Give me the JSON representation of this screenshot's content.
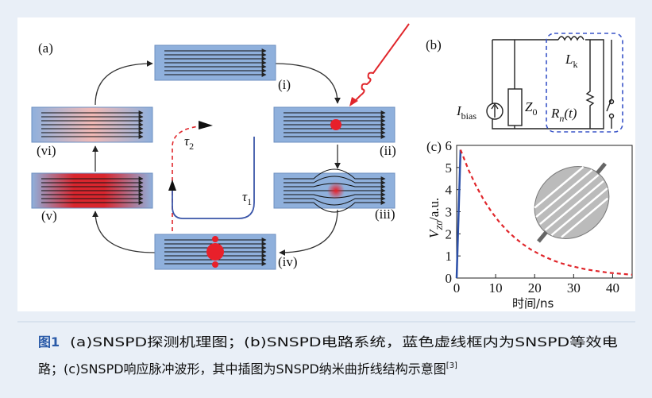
{
  "panel_a": {
    "label": "(a)",
    "stages": [
      "(i)",
      "(ii)",
      "(iii)",
      "(iv)",
      "(v)",
      "(vi)"
    ],
    "tau1": {
      "symbol": "τ",
      "sub": "1"
    },
    "tau2": {
      "symbol": "τ",
      "sub": "2"
    }
  },
  "panel_b": {
    "label": "(b)",
    "bias": {
      "symbol": "I",
      "sub": "bias"
    },
    "z0": {
      "symbol": "Z",
      "sub": "0"
    },
    "lk": {
      "symbol": "L",
      "sub": "k"
    },
    "rn": {
      "symbol": "R",
      "sub": "n",
      "tail": "(t)"
    }
  },
  "chart_data": {
    "type": "line",
    "label": "(c)",
    "xlabel": "时间/ns",
    "ylabel": {
      "symbol": "V",
      "sub": "Z0",
      "unit": "/a.u."
    },
    "series": [
      {
        "color": "#2b4fa8",
        "dash": false,
        "x": [
          0,
          1
        ],
        "values": [
          0,
          5.8
        ]
      },
      {
        "color": "#e0262b",
        "dash": true,
        "x": [
          1,
          3,
          5,
          7,
          9,
          11,
          13,
          15,
          17,
          19,
          21,
          23,
          25,
          27,
          29,
          31,
          33,
          35,
          37,
          39,
          41,
          43,
          45
        ],
        "values": [
          5.8,
          4.91,
          4.16,
          3.52,
          2.98,
          2.52,
          2.13,
          1.81,
          1.53,
          1.29,
          1.1,
          0.93,
          0.78,
          0.66,
          0.56,
          0.48,
          0.4,
          0.34,
          0.29,
          0.24,
          0.21,
          0.18,
          0.15
        ]
      }
    ],
    "xlim": [
      0,
      45
    ],
    "ylim": [
      0,
      6
    ],
    "xticks": [
      0,
      10,
      20,
      30,
      40
    ],
    "yticks": [
      0,
      1,
      2,
      3,
      4,
      5,
      6
    ]
  },
  "caption": {
    "label": "图1",
    "lines": [
      "(a)SNSPD探测机理图；(b)SNSPD电路系统，蓝色虚线框内为SNSPD等效电",
      "路；(c)SNSPD响应脉冲波形，其中插图为SNSPD纳米曲折线结构示意图"
    ],
    "ref": "[3]"
  }
}
